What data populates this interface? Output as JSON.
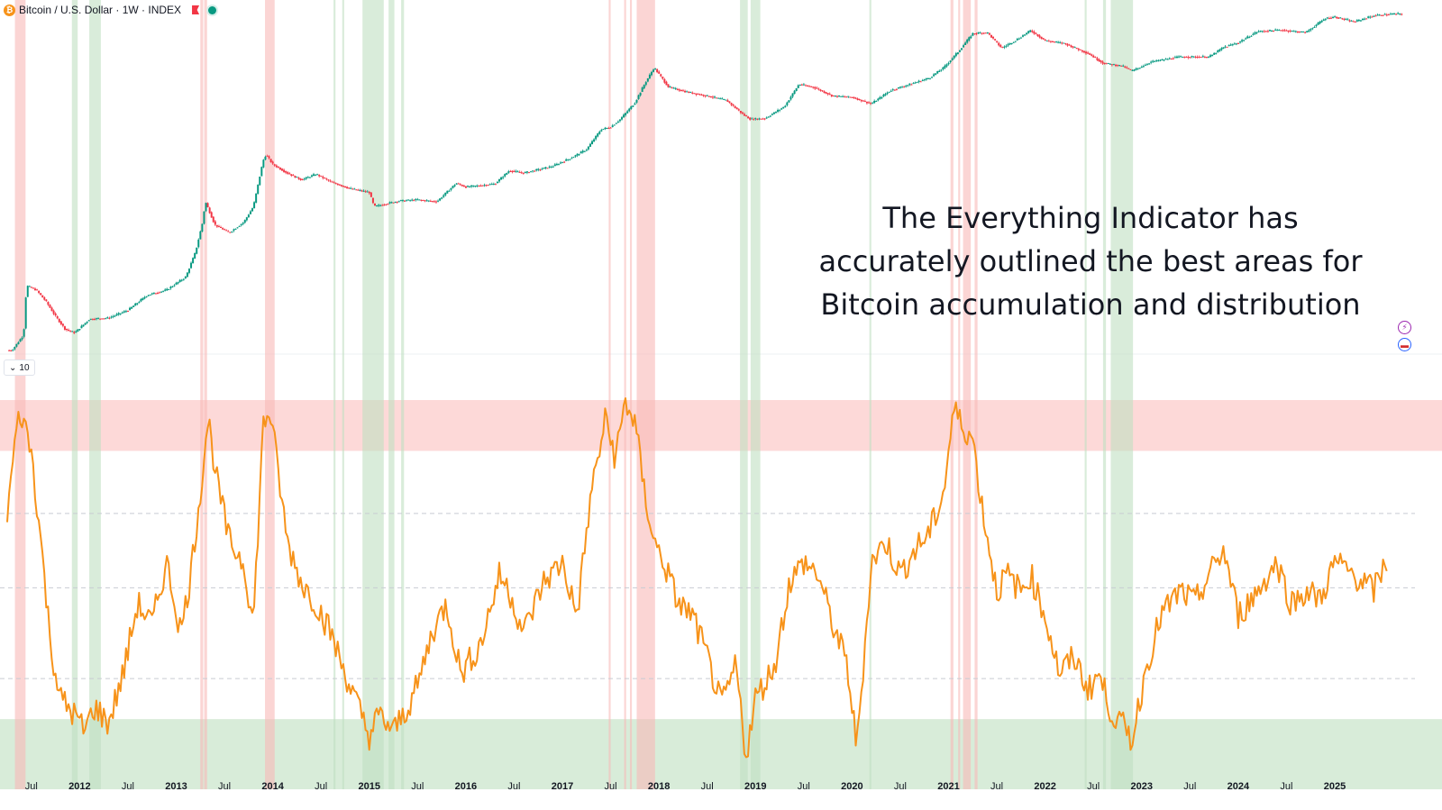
{
  "header": {
    "symbol_title": "Bitcoin / U.S. Dollar · 1W · INDEX",
    "btc_icon": "bitcoin-logo-icon",
    "flag_icon": "red-flag-icon",
    "status_icon": "market-status-dot-icon"
  },
  "indicator_pane": {
    "badge_value": "10"
  },
  "annotation": {
    "lines": [
      "The Everything Indicator has",
      "accurately outlined the best areas for",
      "Bitcoin accumulation and distribution"
    ]
  },
  "side_icons": [
    "lightning-alert-icon",
    "us-flag-economy-icon"
  ],
  "colors": {
    "up_candle": "#089981",
    "down_candle": "#f23645",
    "indicator": "#f7931a",
    "distribution_band": "#fdd9d8",
    "accumulation_band": "#d8ecd9",
    "red_highlight": "#f8b9b7",
    "green_highlight": "#bfe0c1"
  },
  "chart_data": [
    {
      "type": "candlestick",
      "title": "Bitcoin / U.S. Dollar · 1W · INDEX",
      "yscale": "log",
      "ylim": [
        1.5,
        150000
      ],
      "xlim": [
        2011.25,
        2025.7
      ],
      "series": [
        {
          "x": [
            2011.3,
            2011.42,
            2011.45,
            2011.55,
            2011.65,
            2011.75,
            2011.85,
            2011.95,
            2012.1,
            2012.3,
            2012.5,
            2012.7,
            2012.9,
            2013.1,
            2013.2,
            2013.28,
            2013.3,
            2013.4,
            2013.55,
            2013.7,
            2013.8,
            2013.9,
            2013.93,
            2014.0,
            2014.15,
            2014.3,
            2014.45,
            2014.6,
            2014.8,
            2015.0,
            2015.05,
            2015.3,
            2015.5,
            2015.7,
            2015.9,
            2016.0,
            2016.3,
            2016.45,
            2016.6,
            2016.9,
            2017.1,
            2017.25,
            2017.4,
            2017.5,
            2017.6,
            2017.75,
            2017.85,
            2017.95,
            2018.1,
            2018.3,
            2018.5,
            2018.7,
            2018.88,
            2018.95,
            2019.1,
            2019.3,
            2019.45,
            2019.6,
            2019.8,
            2020.0,
            2020.2,
            2020.4,
            2020.6,
            2020.8,
            2020.95,
            2021.1,
            2021.25,
            2021.4,
            2021.55,
            2021.7,
            2021.85,
            2022.0,
            2022.2,
            2022.45,
            2022.6,
            2022.8,
            2022.9,
            2023.1,
            2023.4,
            2023.7,
            2023.85,
            2024.0,
            2024.2,
            2024.45,
            2024.7,
            2024.9,
            2025.0,
            2025.2,
            2025.4,
            2025.6
          ],
          "y": [
            1.8,
            3,
            15,
            13,
            9,
            5.5,
            3.6,
            3.2,
            5,
            5.2,
            6.7,
            11,
            13,
            20,
            45,
            130,
            240,
            110,
            85,
            120,
            200,
            900,
            1100,
            800,
            600,
            480,
            580,
            450,
            360,
            320,
            200,
            240,
            250,
            235,
            430,
            380,
            420,
            650,
            600,
            750,
            1000,
            1300,
            2500,
            2700,
            3500,
            6000,
            11000,
            19000,
            10000,
            8500,
            7500,
            6500,
            4000,
            3500,
            3600,
            5300,
            11000,
            10000,
            7500,
            7200,
            5800,
            9000,
            11000,
            13500,
            19000,
            32000,
            58000,
            60000,
            36000,
            47000,
            64000,
            46000,
            42000,
            30000,
            22000,
            20000,
            17000,
            23000,
            27000,
            27000,
            37000,
            43000,
            62000,
            65000,
            60000,
            95000,
            100000,
            85000,
            104000,
            110000
          ]
        }
      ],
      "highlight_years": [
        "2011.35–2011.45 distribution",
        "2013.25–2013.3",
        "2013.95–2014.0",
        "2017.65–2017.95",
        "2021.05–2021.3"
      ]
    },
    {
      "type": "line",
      "title": "",
      "series": [
        {
          "name": "",
          "x": [
            2011.25,
            2011.35,
            2011.4,
            2011.5,
            2011.6,
            2011.7,
            2011.8,
            2011.95,
            2012.05,
            2012.15,
            2012.3,
            2012.45,
            2012.6,
            2012.75,
            2012.9,
            2013.05,
            2013.15,
            2013.25,
            2013.33,
            2013.42,
            2013.55,
            2013.7,
            2013.8,
            2013.9,
            2013.97,
            2014.05,
            2014.15,
            2014.3,
            2014.45,
            2014.6,
            2014.72,
            2014.85,
            2015.0,
            2015.1,
            2015.25,
            2015.4,
            2015.5,
            2015.65,
            2015.8,
            2015.95,
            2016.15,
            2016.35,
            2016.45,
            2016.6,
            2016.8,
            2017.0,
            2017.15,
            2017.3,
            2017.45,
            2017.55,
            2017.65,
            2017.75,
            2017.85,
            2017.95,
            2018.05,
            2018.2,
            2018.35,
            2018.5,
            2018.65,
            2018.8,
            2018.9,
            2019.0,
            2019.2,
            2019.35,
            2019.5,
            2019.65,
            2019.8,
            2019.95,
            2020.05,
            2020.2,
            2020.35,
            2020.5,
            2020.65,
            2020.8,
            2020.95,
            2021.05,
            2021.15,
            2021.25,
            2021.35,
            2021.5,
            2021.6,
            2021.75,
            2021.85,
            2022.0,
            2022.15,
            2022.3,
            2022.45,
            2022.55,
            2022.7,
            2022.85,
            2022.9,
            2023.05,
            2023.2,
            2023.4,
            2023.55,
            2023.7,
            2023.85,
            2024.0,
            2024.2,
            2024.4,
            2024.55,
            2024.7,
            2024.85,
            2025.0,
            2025.2,
            2025.4,
            2025.55
          ],
          "y": [
            67,
            88,
            91,
            82,
            60,
            35,
            22,
            18,
            14,
            20,
            16,
            28,
            45,
            40,
            55,
            38,
            52,
            72,
            90,
            75,
            60,
            55,
            40,
            88,
            92,
            78,
            60,
            50,
            45,
            38,
            30,
            22,
            13,
            18,
            14,
            20,
            25,
            38,
            45,
            28,
            35,
            52,
            48,
            38,
            50,
            55,
            42,
            72,
            90,
            80,
            94,
            89,
            72,
            60,
            55,
            45,
            42,
            32,
            20,
            30,
            8,
            22,
            30,
            50,
            55,
            52,
            40,
            30,
            10,
            55,
            60,
            52,
            58,
            62,
            72,
            92,
            88,
            85,
            68,
            48,
            52,
            48,
            52,
            42,
            28,
            32,
            24,
            28,
            18,
            14,
            12,
            30,
            42,
            48,
            45,
            52,
            58,
            42,
            48,
            55,
            45,
            48,
            46,
            55,
            52,
            48,
            56
          ]
        }
      ],
      "ylim": [
        0,
        100
      ],
      "bands": {
        "distribution": [
          82,
          100
        ],
        "accumulation": [
          0,
          17
        ]
      },
      "grid_dashed_levels": [
        24,
        46,
        64
      ],
      "x_tick_labels": [
        "Jul",
        "2012",
        "Jul",
        "2013",
        "Jul",
        "2014",
        "Jul",
        "2015",
        "Jul",
        "2016",
        "Jul",
        "2017",
        "Jul",
        "2018",
        "Jul",
        "2019",
        "Jul",
        "2020",
        "Jul",
        "2021",
        "Jul",
        "2022",
        "Jul",
        "2023",
        "Jul",
        "2024",
        "Jul",
        "2025"
      ]
    }
  ]
}
